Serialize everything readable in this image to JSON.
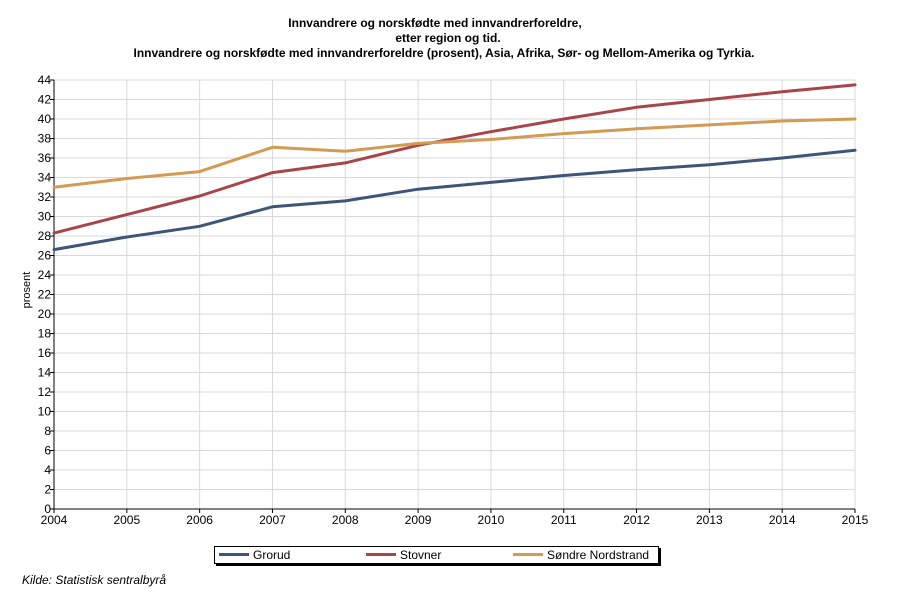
{
  "title_lines": [
    "Innvandrere og norskfødte med innvandrerforeldre,",
    "etter region og tid.",
    "Innvandrere og norskfødte med innvandrerforeldre (prosent), Asia, Afrika, Sør- og Mellom-Amerika og Tyrkia."
  ],
  "source": "Kilde: Statistisk sentralbyrå",
  "chart_data": {
    "type": "line",
    "title": "Innvandrere og norskfødte med innvandrerforeldre, etter region og tid. Innvandrere og norskfødte med innvandrerforeldre (prosent), Asia, Afrika, Sør- og Mellom-Amerika og Tyrkia.",
    "xlabel": "",
    "ylabel": "prosent",
    "x": [
      2004,
      2005,
      2006,
      2007,
      2008,
      2009,
      2010,
      2011,
      2012,
      2013,
      2014,
      2015
    ],
    "ylim": [
      0,
      44
    ],
    "yticks": [
      0,
      2,
      4,
      6,
      8,
      10,
      12,
      14,
      16,
      18,
      20,
      22,
      24,
      26,
      28,
      30,
      32,
      34,
      36,
      38,
      40,
      42,
      44
    ],
    "grid": true,
    "legend_position": "bottom",
    "series": [
      {
        "name": "Grorud",
        "color": "#3d5577",
        "values": [
          26.6,
          27.9,
          29.0,
          31.0,
          31.6,
          32.8,
          33.5,
          34.2,
          34.8,
          35.3,
          36.0,
          36.8
        ]
      },
      {
        "name": "Stovner",
        "color": "#a8454a",
        "values": [
          28.3,
          30.2,
          32.1,
          34.5,
          35.5,
          37.3,
          38.7,
          40.0,
          41.2,
          42.0,
          42.8,
          43.5
        ]
      },
      {
        "name": "Søndre Nordstrand",
        "color": "#d39a52",
        "values": [
          33.0,
          33.9,
          34.6,
          37.1,
          36.7,
          37.5,
          37.9,
          38.5,
          39.0,
          39.4,
          39.8,
          40.0
        ]
      }
    ]
  }
}
